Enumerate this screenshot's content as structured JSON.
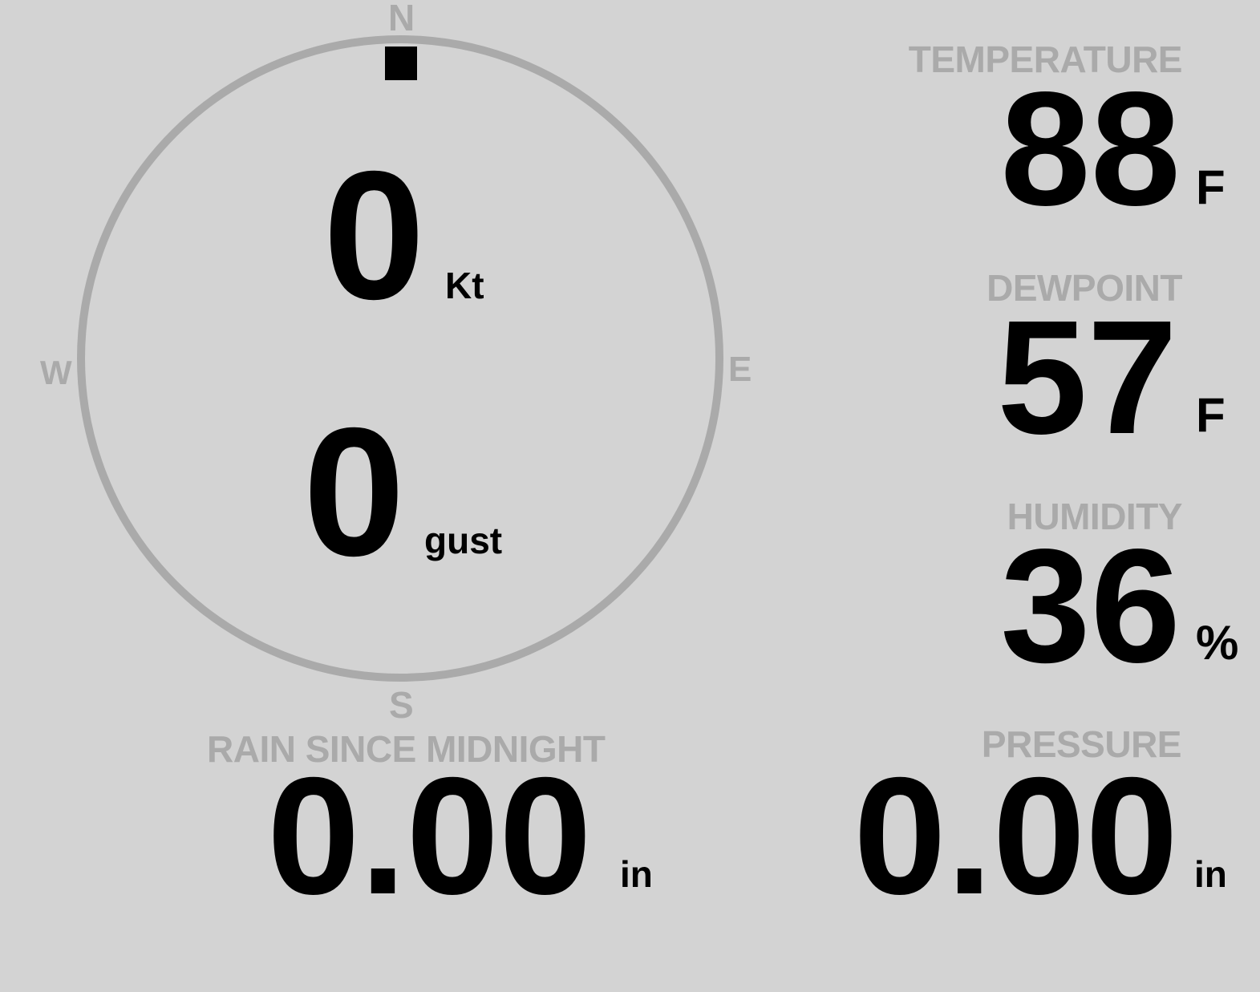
{
  "wind": {
    "compass": {
      "n": "N",
      "e": "E",
      "s": "S",
      "w": "W"
    },
    "direction_degrees": 0,
    "speed": "0",
    "speed_unit": "Kt",
    "gust": "0",
    "gust_unit": "gust"
  },
  "temperature": {
    "label": "TEMPERATURE",
    "value": "88",
    "unit": "F"
  },
  "dewpoint": {
    "label": "DEWPOINT",
    "value": "57",
    "unit": "F"
  },
  "humidity": {
    "label": "HUMIDITY",
    "value": "36",
    "unit": "%"
  },
  "rain": {
    "label": "RAIN SINCE MIDNIGHT",
    "value": "0.00",
    "unit": "in"
  },
  "pressure": {
    "label": "PRESSURE",
    "value": "0.00",
    "unit": "in"
  },
  "colors": {
    "background": "#d3d3d3",
    "label": "#aaaaaa",
    "value": "#000000",
    "compass_ring": "#aaaaaa"
  }
}
